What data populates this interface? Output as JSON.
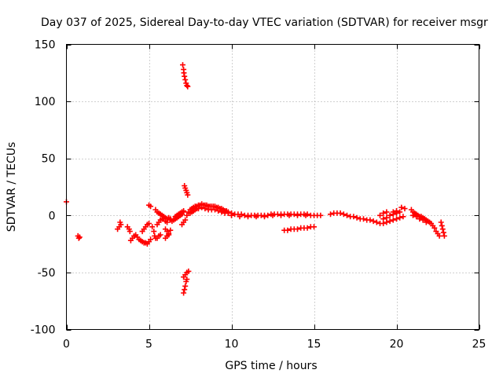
{
  "chart_data": {
    "type": "scatter",
    "title": "Day 037 of 2025, Sidereal Day-to-day VTEC variation (SDTVAR) for receiver msgr",
    "xlabel": "GPS time / hours",
    "ylabel": "SDTVAR / TECUs",
    "xlim": [
      0,
      25
    ],
    "ylim": [
      -100,
      150
    ],
    "xticks": [
      0,
      5,
      10,
      15,
      20,
      25
    ],
    "yticks": [
      -100,
      -50,
      0,
      50,
      100,
      150
    ],
    "grid": true,
    "marker": "plus",
    "color": "#ff0000",
    "series": [
      {
        "name": "SDTVAR",
        "points": [
          [
            0.0,
            12
          ],
          [
            0.7,
            -18
          ],
          [
            0.75,
            -20
          ],
          [
            0.8,
            -19
          ],
          [
            3.1,
            -12
          ],
          [
            3.2,
            -10
          ],
          [
            3.25,
            -6
          ],
          [
            3.3,
            -8
          ],
          [
            3.7,
            -10
          ],
          [
            3.8,
            -12
          ],
          [
            3.85,
            -14
          ],
          [
            3.9,
            -22
          ],
          [
            4.0,
            -20
          ],
          [
            4.1,
            -18
          ],
          [
            4.2,
            -17
          ],
          [
            4.3,
            -19
          ],
          [
            4.4,
            -21
          ],
          [
            4.5,
            -22
          ],
          [
            4.6,
            -23
          ],
          [
            4.7,
            -24
          ],
          [
            4.8,
            -24
          ],
          [
            4.9,
            -25
          ],
          [
            5.0,
            -23
          ],
          [
            5.1,
            -21
          ],
          [
            4.6,
            -14
          ],
          [
            4.7,
            -12
          ],
          [
            4.8,
            -10
          ],
          [
            4.9,
            -8
          ],
          [
            5.0,
            -7
          ],
          [
            5.0,
            9
          ],
          [
            5.1,
            8
          ],
          [
            5.2,
            -10
          ],
          [
            5.3,
            -14
          ],
          [
            5.35,
            -18
          ],
          [
            5.4,
            -20
          ],
          [
            5.5,
            -20
          ],
          [
            5.6,
            -18
          ],
          [
            5.7,
            -17
          ],
          [
            5.4,
            5
          ],
          [
            5.5,
            3
          ],
          [
            5.6,
            2
          ],
          [
            5.7,
            1
          ],
          [
            5.8,
            0
          ],
          [
            5.9,
            -1
          ],
          [
            6.0,
            -2
          ],
          [
            6.1,
            -3
          ],
          [
            6.2,
            -2
          ],
          [
            6.3,
            -3
          ],
          [
            5.5,
            -8
          ],
          [
            5.6,
            -6
          ],
          [
            5.7,
            -4
          ],
          [
            5.8,
            -3
          ],
          [
            5.9,
            -3
          ],
          [
            6.0,
            -5
          ],
          [
            6.1,
            -6
          ],
          [
            6.0,
            -12
          ],
          [
            6.1,
            -14
          ],
          [
            6.2,
            -16
          ],
          [
            6.3,
            -13
          ],
          [
            6.0,
            -20
          ],
          [
            6.1,
            -18
          ],
          [
            6.2,
            -17
          ],
          [
            6.3,
            -4
          ],
          [
            6.4,
            -5
          ],
          [
            6.5,
            -4
          ],
          [
            6.6,
            -3
          ],
          [
            6.7,
            -2
          ],
          [
            6.8,
            -1
          ],
          [
            6.9,
            0
          ],
          [
            7.0,
            1
          ],
          [
            7.1,
            3
          ],
          [
            6.6,
            -1
          ],
          [
            6.7,
            0
          ],
          [
            6.8,
            1
          ],
          [
            6.9,
            2
          ],
          [
            7.0,
            3
          ],
          [
            7.1,
            4
          ],
          [
            7.0,
            -8
          ],
          [
            7.1,
            -6
          ],
          [
            7.2,
            -4
          ],
          [
            7.05,
            132
          ],
          [
            7.1,
            128
          ],
          [
            7.12,
            125
          ],
          [
            7.15,
            122
          ],
          [
            7.2,
            119
          ],
          [
            7.25,
            116
          ],
          [
            7.3,
            114
          ],
          [
            7.35,
            113
          ],
          [
            7.15,
            26
          ],
          [
            7.2,
            24
          ],
          [
            7.25,
            22
          ],
          [
            7.3,
            20
          ],
          [
            7.35,
            18
          ],
          [
            7.1,
            -68
          ],
          [
            7.15,
            -65
          ],
          [
            7.2,
            -62
          ],
          [
            7.25,
            -58
          ],
          [
            7.3,
            -56
          ],
          [
            7.1,
            -54
          ],
          [
            7.2,
            -52
          ],
          [
            7.3,
            -50
          ],
          [
            7.4,
            -49
          ],
          [
            7.3,
            0
          ],
          [
            7.4,
            3
          ],
          [
            7.5,
            5
          ],
          [
            7.6,
            6
          ],
          [
            7.7,
            7
          ],
          [
            7.8,
            8
          ],
          [
            7.9,
            8
          ],
          [
            8.0,
            9
          ],
          [
            8.1,
            9
          ],
          [
            8.2,
            10
          ],
          [
            8.3,
            9
          ],
          [
            8.4,
            9
          ],
          [
            8.5,
            9
          ],
          [
            8.6,
            8
          ],
          [
            8.7,
            8
          ],
          [
            8.8,
            8
          ],
          [
            8.9,
            8
          ],
          [
            9.0,
            8
          ],
          [
            9.1,
            7
          ],
          [
            9.2,
            7
          ],
          [
            9.3,
            6
          ],
          [
            9.4,
            6
          ],
          [
            9.5,
            5
          ],
          [
            9.6,
            4
          ],
          [
            9.7,
            4
          ],
          [
            9.8,
            3
          ],
          [
            7.5,
            2
          ],
          [
            7.6,
            3
          ],
          [
            7.7,
            4
          ],
          [
            7.8,
            5
          ],
          [
            7.9,
            6
          ],
          [
            8.0,
            6
          ],
          [
            8.2,
            7
          ],
          [
            8.4,
            6
          ],
          [
            8.6,
            5
          ],
          [
            8.8,
            5
          ],
          [
            9.0,
            5
          ],
          [
            9.2,
            4
          ],
          [
            9.4,
            3
          ],
          [
            9.6,
            2
          ],
          [
            9.8,
            2
          ],
          [
            10.0,
            2
          ],
          [
            10.2,
            1
          ],
          [
            10.4,
            1
          ],
          [
            10.6,
            1
          ],
          [
            10.8,
            0
          ],
          [
            11.0,
            0
          ],
          [
            11.2,
            0
          ],
          [
            11.4,
            0
          ],
          [
            11.6,
            0
          ],
          [
            11.8,
            0
          ],
          [
            12.0,
            0
          ],
          [
            12.2,
            0
          ],
          [
            12.4,
            1
          ],
          [
            12.6,
            1
          ],
          [
            12.8,
            1
          ],
          [
            13.0,
            1
          ],
          [
            13.2,
            1
          ],
          [
            13.4,
            1
          ],
          [
            13.6,
            1
          ],
          [
            13.8,
            1
          ],
          [
            14.0,
            1
          ],
          [
            14.2,
            1
          ],
          [
            14.4,
            1
          ],
          [
            14.6,
            1
          ],
          [
            14.8,
            0
          ],
          [
            15.0,
            0
          ],
          [
            15.2,
            0
          ],
          [
            15.4,
            0
          ],
          [
            10.0,
            0
          ],
          [
            10.5,
            -1
          ],
          [
            11.0,
            -1
          ],
          [
            11.5,
            -1
          ],
          [
            12.0,
            -1
          ],
          [
            12.5,
            0
          ],
          [
            13.0,
            0
          ],
          [
            13.5,
            0
          ],
          [
            14.0,
            0
          ],
          [
            14.5,
            0
          ],
          [
            13.2,
            -13
          ],
          [
            13.4,
            -13
          ],
          [
            13.6,
            -12
          ],
          [
            13.8,
            -12
          ],
          [
            14.0,
            -12
          ],
          [
            14.2,
            -11
          ],
          [
            14.4,
            -11
          ],
          [
            14.6,
            -11
          ],
          [
            14.8,
            -10
          ],
          [
            15.0,
            -10
          ],
          [
            16.0,
            1
          ],
          [
            16.2,
            2
          ],
          [
            16.4,
            2
          ],
          [
            16.6,
            2
          ],
          [
            16.8,
            1
          ],
          [
            17.0,
            0
          ],
          [
            17.2,
            -1
          ],
          [
            17.4,
            -1
          ],
          [
            17.6,
            -2
          ],
          [
            17.8,
            -3
          ],
          [
            18.0,
            -3
          ],
          [
            18.2,
            -4
          ],
          [
            18.4,
            -4
          ],
          [
            18.6,
            -5
          ],
          [
            18.8,
            -6
          ],
          [
            19.0,
            -7
          ],
          [
            19.2,
            -7
          ],
          [
            19.4,
            -6
          ],
          [
            19.6,
            -5
          ],
          [
            19.8,
            -4
          ],
          [
            20.0,
            -3
          ],
          [
            20.2,
            -2
          ],
          [
            20.4,
            -1
          ],
          [
            19.2,
            -3
          ],
          [
            19.4,
            -2
          ],
          [
            19.6,
            0
          ],
          [
            19.8,
            1
          ],
          [
            20.0,
            2
          ],
          [
            20.2,
            3
          ],
          [
            19.0,
            0
          ],
          [
            19.2,
            2
          ],
          [
            19.4,
            3
          ],
          [
            19.8,
            3
          ],
          [
            20.0,
            4
          ],
          [
            20.3,
            7
          ],
          [
            20.5,
            6
          ],
          [
            20.9,
            5
          ],
          [
            21.0,
            3
          ],
          [
            21.1,
            2
          ],
          [
            21.2,
            1
          ],
          [
            21.3,
            0
          ],
          [
            21.4,
            -1
          ],
          [
            21.5,
            -1
          ],
          [
            21.6,
            -2
          ],
          [
            21.7,
            -3
          ],
          [
            21.8,
            -4
          ],
          [
            21.9,
            -5
          ],
          [
            22.0,
            -6
          ],
          [
            22.1,
            -7
          ],
          [
            22.2,
            -9
          ],
          [
            22.3,
            -11
          ],
          [
            22.4,
            -14
          ],
          [
            22.5,
            -16
          ],
          [
            22.6,
            -18
          ],
          [
            21.0,
            0
          ],
          [
            21.2,
            -1
          ],
          [
            21.4,
            -3
          ],
          [
            21.6,
            -4
          ],
          [
            21.8,
            -6
          ],
          [
            22.7,
            -6
          ],
          [
            22.75,
            -9
          ],
          [
            22.8,
            -12
          ],
          [
            22.85,
            -15
          ],
          [
            22.9,
            -18
          ]
        ]
      }
    ]
  }
}
